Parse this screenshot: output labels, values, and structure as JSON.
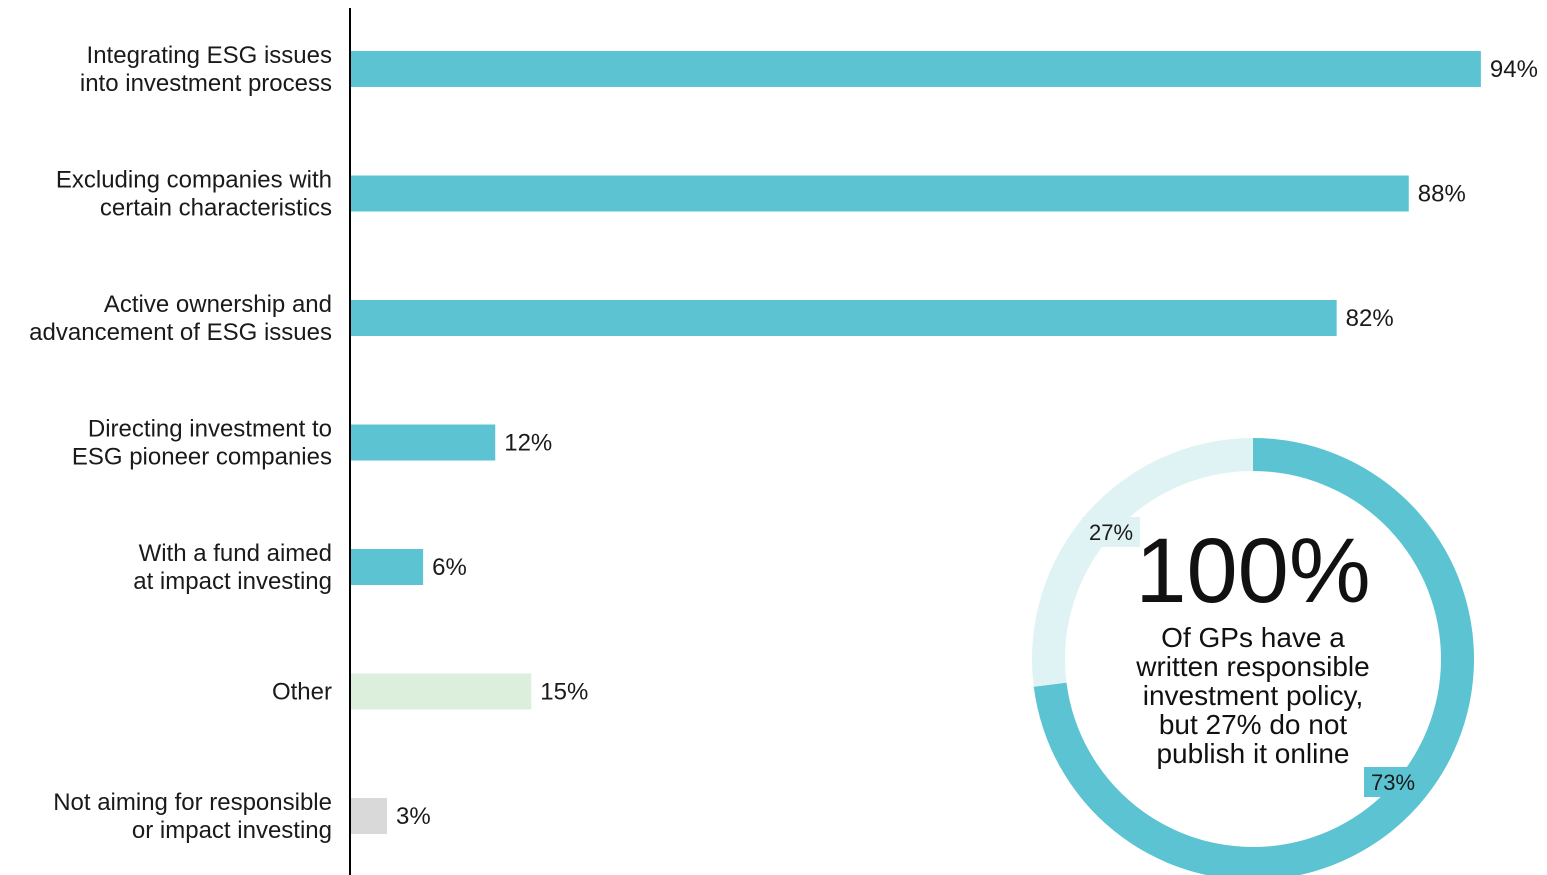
{
  "chart_data": [
    {
      "type": "bar",
      "orientation": "horizontal",
      "categories": [
        [
          "Integrating ESG issues",
          "into investment process"
        ],
        [
          "Excluding companies with",
          "certain characteristics"
        ],
        [
          "Active ownership and",
          "advancement of ESG issues"
        ],
        [
          "Directing investment to",
          "ESG pioneer companies"
        ],
        [
          "With a fund aimed",
          "at impact investing"
        ],
        [
          "Other"
        ],
        [
          "Not aiming for responsible",
          "or impact investing"
        ]
      ],
      "values": [
        94,
        88,
        82,
        12,
        6,
        15,
        3
      ],
      "value_labels": [
        "94%",
        "88%",
        "82%",
        "12%",
        "6%",
        "15%",
        "3%"
      ],
      "bar_colors": [
        "#5bc3d1",
        "#5bc3d1",
        "#5bc3d1",
        "#5bc3d1",
        "#5bc3d1",
        "#dcefdc",
        "#d9d9d9"
      ],
      "xlim": [
        0,
        100
      ],
      "grid": false,
      "legend": "none"
    },
    {
      "type": "pie",
      "style": "donut",
      "slices": [
        {
          "value": 73,
          "label": "73%",
          "color": "#5bc3d1"
        },
        {
          "value": 27,
          "label": "27%",
          "color": "#dff3f4"
        }
      ],
      "center_value": "100%",
      "center_text": [
        "Of GPs have a",
        "written responsible",
        "investment policy,",
        "but 27% do not",
        "publish it online"
      ]
    }
  ]
}
